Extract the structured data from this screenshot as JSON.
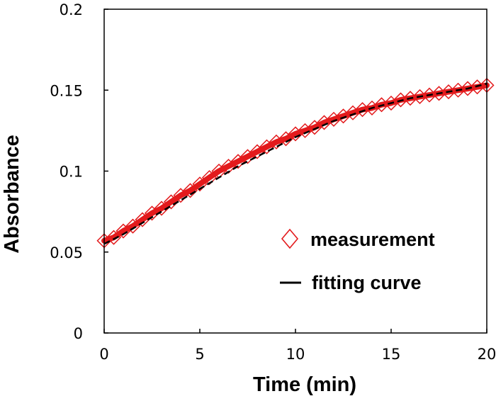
{
  "chart_data": {
    "type": "scatter",
    "title": "",
    "xlabel": "Time (min)",
    "ylabel": "Absorbance",
    "xlim": [
      0,
      20
    ],
    "ylim": [
      0,
      0.2
    ],
    "x_ticks": [
      "0",
      "5",
      "10",
      "15",
      "20"
    ],
    "y_ticks": [
      "0",
      "0.05",
      "0.1",
      "0.15",
      "0.2"
    ],
    "grid": false,
    "legend": {
      "position": "center-right",
      "entries": [
        "measurement",
        "fitting curve"
      ]
    },
    "series": [
      {
        "name": "measurement",
        "kind": "markers",
        "marker": "diamond",
        "color": "#e31a1c",
        "x": [
          0,
          0.5,
          1,
          1.5,
          2,
          2.5,
          3,
          3.5,
          4,
          4.5,
          5,
          5.5,
          6,
          6.5,
          7,
          7.5,
          8,
          8.5,
          9,
          9.5,
          10,
          10.5,
          11,
          11.5,
          12,
          12.5,
          13,
          13.5,
          14,
          14.5,
          15,
          15.5,
          16,
          16.5,
          17,
          17.5,
          18,
          18.5,
          19,
          19.5,
          20
        ],
        "y": [
          0.057,
          0.059,
          0.063,
          0.066,
          0.07,
          0.074,
          0.077,
          0.081,
          0.085,
          0.088,
          0.092,
          0.096,
          0.1,
          0.103,
          0.106,
          0.109,
          0.112,
          0.115,
          0.118,
          0.12,
          0.123,
          0.125,
          0.127,
          0.13,
          0.132,
          0.134,
          0.136,
          0.138,
          0.139,
          0.141,
          0.142,
          0.144,
          0.145,
          0.146,
          0.147,
          0.148,
          0.149,
          0.15,
          0.151,
          0.152,
          0.153
        ]
      },
      {
        "name": "fitting curve",
        "kind": "line",
        "color": "#000000",
        "style": "dashed",
        "x": [
          0,
          1,
          2,
          3,
          4,
          5,
          6,
          7,
          8,
          9,
          10,
          11,
          12,
          13,
          14,
          15,
          16,
          17,
          18,
          19,
          20
        ],
        "y": [
          0.055,
          0.061,
          0.068,
          0.075,
          0.082,
          0.089,
          0.096,
          0.103,
          0.109,
          0.115,
          0.121,
          0.126,
          0.131,
          0.135,
          0.139,
          0.142,
          0.145,
          0.147,
          0.149,
          0.151,
          0.154
        ]
      }
    ]
  }
}
